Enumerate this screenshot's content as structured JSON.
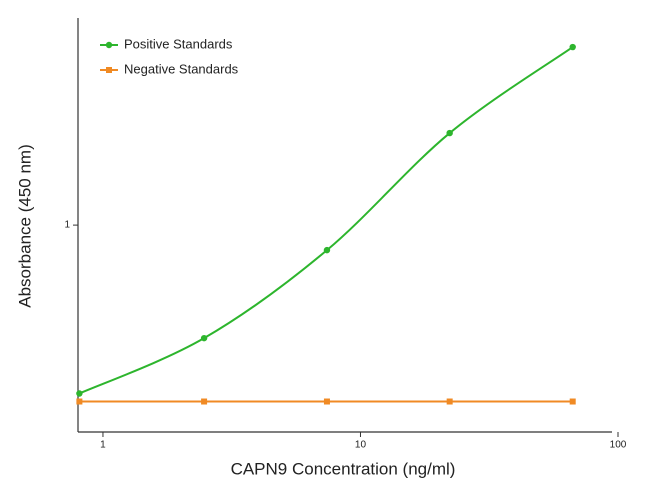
{
  "chart_data": {
    "type": "line",
    "x_label": "CAPN9 Concentration (ng/ml)",
    "y_label": "Absorbance (450 nm)",
    "x_scale": "log",
    "y_scale": "log",
    "x": [
      0.81,
      2.47,
      7.41,
      22.2,
      66.7
    ],
    "series": [
      {
        "name": "Positive Standards",
        "color": "#2db52d",
        "marker": "circle",
        "values": [
          0.151,
          0.281,
          0.755,
          2.81,
          7.38
        ]
      },
      {
        "name": "Negative Standards",
        "color": "#f08a24",
        "marker": "square",
        "values": [
          0.138,
          0.138,
          0.138,
          0.138,
          0.138
        ]
      }
    ],
    "xlim": [
      0.8,
      100
    ],
    "ylim": [
      0.098,
      10
    ],
    "xticks": [
      1,
      10,
      100
    ],
    "yticks": [
      1
    ],
    "legend": "top-left"
  }
}
